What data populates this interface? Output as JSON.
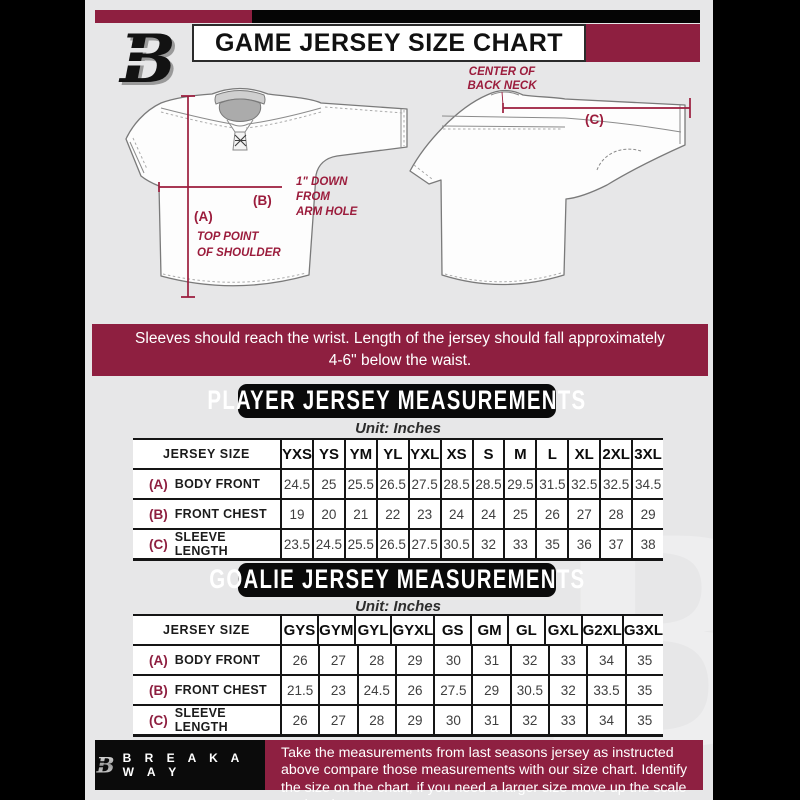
{
  "header": {
    "title": "GAME JERSEY SIZE CHART",
    "logo_letter": "B"
  },
  "diagram": {
    "front": {
      "a_key": "(A)",
      "a_note_line1": "TOP POINT",
      "a_note_line2": "OF SHOULDER",
      "b_key": "(B)",
      "b_note_line1": "1\" DOWN",
      "b_note_line2": "FROM",
      "b_note_line3": "ARM HOLE"
    },
    "back": {
      "c_key": "(C)",
      "c_note_line1": "CENTER OF",
      "c_note_line2": "BACK NECK"
    }
  },
  "banner_text": "Sleeves should reach the wrist. Length of the jersey should fall approximately 4-6\" below the waist.",
  "player_table": {
    "title": "PLAYER JERSEY MEASUREMENTS",
    "unit": "Unit: Inches",
    "size_header": "JERSEY SIZE",
    "columns": [
      "YXS",
      "YS",
      "YM",
      "YL",
      "YXL",
      "XS",
      "S",
      "M",
      "L",
      "XL",
      "2XL",
      "3XL"
    ],
    "rows": [
      {
        "key": "(A)",
        "label": "BODY FRONT",
        "values": [
          "24.5",
          "25",
          "25.5",
          "26.5",
          "27.5",
          "28.5",
          "28.5",
          "29.5",
          "31.5",
          "32.5",
          "32.5",
          "34.5"
        ]
      },
      {
        "key": "(B)",
        "label": "FRONT CHEST",
        "values": [
          "19",
          "20",
          "21",
          "22",
          "23",
          "24",
          "24",
          "25",
          "26",
          "27",
          "28",
          "29"
        ]
      },
      {
        "key": "(C)",
        "label": "SLEEVE LENGTH",
        "values": [
          "23.5",
          "24.5",
          "25.5",
          "26.5",
          "27.5",
          "30.5",
          "32",
          "33",
          "35",
          "36",
          "37",
          "38"
        ]
      }
    ]
  },
  "goalie_table": {
    "title": "GOALIE JERSEY MEASUREMENTS",
    "unit": "Unit: Inches",
    "size_header": "JERSEY SIZE",
    "columns": [
      "GYS",
      "GYM",
      "GYL",
      "GYXL",
      "GS",
      "GM",
      "GL",
      "GXL",
      "G2XL",
      "G3XL"
    ],
    "rows": [
      {
        "key": "(A)",
        "label": "BODY FRONT",
        "values": [
          "26",
          "27",
          "28",
          "29",
          "30",
          "31",
          "32",
          "33",
          "34",
          "35"
        ]
      },
      {
        "key": "(B)",
        "label": "FRONT CHEST",
        "values": [
          "21.5",
          "23",
          "24.5",
          "26",
          "27.5",
          "29",
          "30.5",
          "32",
          "33.5",
          "35"
        ]
      },
      {
        "key": "(C)",
        "label": "SLEEVE LENGTH",
        "values": [
          "26",
          "27",
          "28",
          "29",
          "30",
          "31",
          "32",
          "33",
          "34",
          "35"
        ]
      }
    ]
  },
  "footer": {
    "brand": "B R E A K A W A Y",
    "logo_letter": "B",
    "note": "Take the measurements from last seasons jersey as instructed above compare those measurements  with our size chart. Identify the size on the chart, if you need a larger size move up the scale on the chart"
  },
  "colors": {
    "maroon": "#8e1f40",
    "black": "#0a0a0a",
    "background": "#e7e7e8",
    "annotation": "#9b1c3c"
  }
}
